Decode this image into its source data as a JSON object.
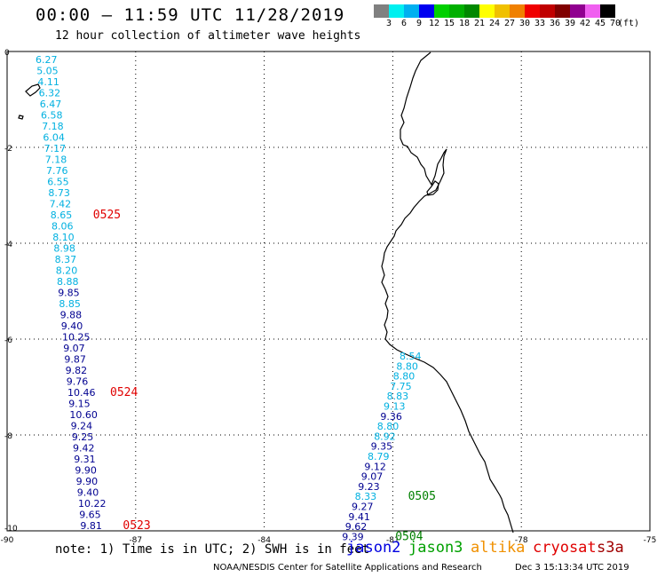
{
  "header": {
    "title": "00:00 – 11:59 UTC 11/28/2019",
    "subtitle": "12 hour collection of altimeter wave heights"
  },
  "legend": {
    "colors": [
      "#808080",
      "#00f0f0",
      "#00b0f0",
      "#0000f0",
      "#00d000",
      "#00b000",
      "#008800",
      "#ffff00",
      "#f0c000",
      "#f08000",
      "#f00000",
      "#c00000",
      "#800000",
      "#900090",
      "#f060f0",
      "#000000"
    ],
    "labels": [
      "3",
      "6",
      "9",
      "12",
      "15",
      "18",
      "21",
      "24",
      "27",
      "30",
      "33",
      "36",
      "39",
      "42",
      "45",
      "70",
      "(ft)"
    ]
  },
  "axes": {
    "x_ticks": [
      "-90",
      "-87",
      "-84",
      "-81",
      "-78",
      "-75"
    ],
    "y_ticks": [
      "0",
      "-2",
      "-4",
      "-6",
      "-8",
      "-10"
    ]
  },
  "left_track": {
    "heights": [
      "6.27",
      "5.05",
      "4.11",
      "6.32",
      "6.47",
      "6.58",
      "7.18",
      "6.04",
      "7.17",
      "7.18",
      "7.76",
      "6.55",
      "8.73",
      "7.42",
      "8.65",
      "8.06",
      "8.10",
      "8.98",
      "8.37",
      "8.20",
      "8.88",
      "9.85",
      "8.85",
      "9.88",
      "9.40",
      "10.25",
      "9.07",
      "9.87",
      "9.82",
      "9.76",
      "10.46",
      "9.15",
      "10.60",
      "9.24",
      "9.25",
      "9.42",
      "9.31",
      "9.90",
      "9.90",
      "9.40",
      "10.22",
      "9.65",
      "9.81"
    ],
    "colors": [
      "l",
      "l",
      "l",
      "l",
      "l",
      "l",
      "l",
      "l",
      "l",
      "l",
      "l",
      "l",
      "l",
      "l",
      "l",
      "l",
      "l",
      "l",
      "l",
      "l",
      "l",
      "d",
      "l",
      "d",
      "d",
      "d",
      "d",
      "d",
      "d",
      "d",
      "d",
      "d",
      "d",
      "d",
      "d",
      "d",
      "d",
      "d",
      "d",
      "d",
      "d",
      "d",
      "d"
    ],
    "time_labels": [
      {
        "text": "0525",
        "row": 14
      },
      {
        "text": "0524",
        "row": 30
      },
      {
        "text": "0523",
        "row": 42
      }
    ]
  },
  "right_track": {
    "heights": [
      "8.54",
      "8.80",
      "8.80",
      "7.75",
      "8.83",
      "9.13",
      "9.36",
      "8.80",
      "8.92",
      "9.35",
      "8.79",
      "9.12",
      "9.07",
      "9.23",
      "8.33",
      "9.27",
      "9.41",
      "9.62",
      "9.39"
    ],
    "colors": [
      "l",
      "l",
      "l",
      "l",
      "l",
      "l",
      "d",
      "l",
      "l",
      "d",
      "l",
      "d",
      "d",
      "d",
      "l",
      "d",
      "d",
      "d",
      "d"
    ],
    "time_labels": [
      {
        "text": "0505",
        "row": 14
      },
      {
        "text": "0504",
        "row": 18
      }
    ]
  },
  "track_colors": {
    "l": "#00b0e0",
    "d": "#000090",
    "red": "#e00000",
    "green": "#008000"
  },
  "footer": {
    "note": "note: 1) Time is in UTC; 2) SWH is in feet",
    "satellites": [
      {
        "name": "jason2",
        "color": "#0000e0"
      },
      {
        "name": "jason3",
        "color": "#00a000"
      },
      {
        "name": "altika",
        "color": "#f09000"
      },
      {
        "name": "cryosat",
        "color": "#e00000"
      },
      {
        "name": "s3a",
        "color": "#a00000"
      }
    ],
    "credit": "NOAA/NESDIS Center for Satellite Applications and Research",
    "timestamp": "Dec  3 15:13:34 UTC 2019"
  }
}
